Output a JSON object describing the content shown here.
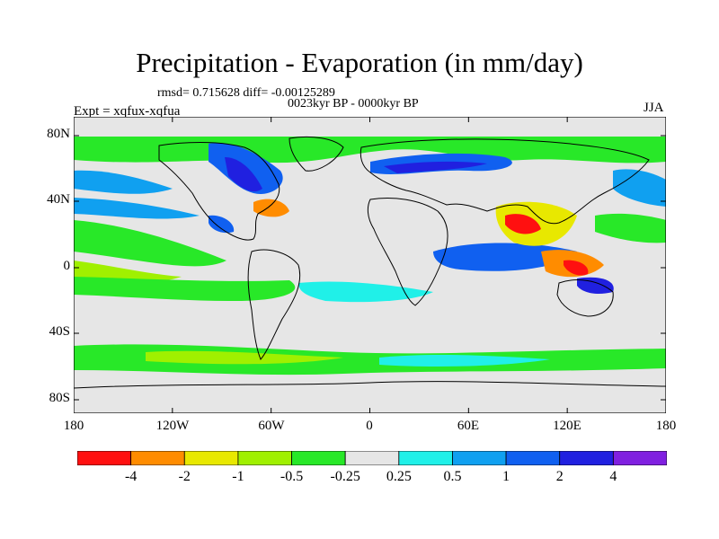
{
  "title": "Precipitation - Evaporation (in mm/day)",
  "stats": "rmsd= 0.715628 diff= -0.00125289",
  "period": "0023kyr BP - 0000kyr BP",
  "experiment": "Expt = xqfux-xqfua",
  "season": "JJA",
  "map": {
    "latitude_ticks": [
      "80N",
      "40N",
      "0",
      "40S",
      "80S"
    ],
    "longitude_ticks": [
      "180",
      "120W",
      "60W",
      "0",
      "60E",
      "120E",
      "180"
    ],
    "background_color": "#e6e6e6",
    "coastline_color": "#000000"
  },
  "colorbar": {
    "labels": [
      "-4",
      "-2",
      "-1",
      "-0.5",
      "-0.25",
      "0.25",
      "0.5",
      "1",
      "2",
      "4"
    ],
    "colors": [
      "#ff1010",
      "#ff8c00",
      "#e8e800",
      "#a0f000",
      "#28e828",
      "#e6e6e6",
      "#20f0e8",
      "#10a0f0",
      "#1060f0",
      "#2020e0",
      "#8020e0"
    ]
  }
}
